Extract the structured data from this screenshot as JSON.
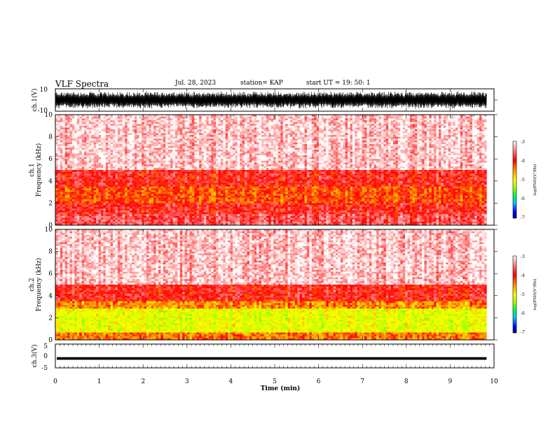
{
  "header": {
    "title": "VLF Spectra",
    "date": "Jul. 28, 2023",
    "station": "station= KAP",
    "start": "start  UT  =   19: 50: 1"
  },
  "colors": {
    "waveform": "#000000",
    "frame": "#000000",
    "colormap": [
      "#00007a",
      "#0000ff",
      "#00c8ff",
      "#00ff40",
      "#b4ff00",
      "#ffff00",
      "#ff9900",
      "#ff0000",
      "#ff8080",
      "#ffffff"
    ]
  },
  "colorbar_labels": {
    "label": "log(PSD)(V²/Hz)",
    "ticks": [
      "-3",
      "-4",
      "-5",
      "-6",
      "-7"
    ]
  },
  "chart_data": [
    {
      "type": "line",
      "panel": "ch1_waveform",
      "ylabel": "ch.1(V)",
      "ylim": [
        -10,
        10
      ],
      "yticks": [
        "10",
        "-10"
      ],
      "description_series": "dense oscillating waveform filling roughly -8 to 8 V",
      "xlim": [
        0,
        10
      ]
    },
    {
      "type": "heatmap",
      "panel": "ch1_spectrogram",
      "ylabel": "ch.1\nFrequency  (kHz)",
      "ylim": [
        0,
        10
      ],
      "yticks": [
        "0",
        "2",
        "4",
        "6",
        "8",
        "10"
      ],
      "xlim": [
        0,
        9.83
      ],
      "color_scale": [
        -7,
        -3
      ],
      "frequency_bands_kHz": [
        {
          "from": 0,
          "to": 1,
          "log_psd": -3.6
        },
        {
          "from": 1,
          "to": 2,
          "log_psd": -3.8
        },
        {
          "from": 2,
          "to": 3.5,
          "log_psd": -4.1
        },
        {
          "from": 3.5,
          "to": 5,
          "log_psd": -3.8
        },
        {
          "from": 5,
          "to": 10,
          "log_psd": -3.2
        }
      ]
    },
    {
      "type": "heatmap",
      "panel": "ch2_spectrogram",
      "ylabel": "ch.2\nFrequency  (kHz)",
      "ylim": [
        0,
        10
      ],
      "yticks": [
        "0",
        "2",
        "4",
        "6",
        "8",
        "10"
      ],
      "xlim": [
        0,
        9.83
      ],
      "color_scale": [
        -7,
        -3
      ],
      "frequency_bands_kHz": [
        {
          "from": 0,
          "to": 0.7,
          "log_psd": -4.2
        },
        {
          "from": 0.7,
          "to": 2.8,
          "log_psd": -4.9
        },
        {
          "from": 2.8,
          "to": 3.5,
          "log_psd": -4.3
        },
        {
          "from": 3.5,
          "to": 5,
          "log_psd": -3.8
        },
        {
          "from": 5,
          "to": 10,
          "log_psd": -3.2
        }
      ]
    },
    {
      "type": "line",
      "panel": "ch3_waveform",
      "ylabel": "ch.3(V)",
      "ylim": [
        -5,
        5
      ],
      "yticks": [
        "5",
        "0",
        "-5"
      ],
      "xlabel": "Time  (min)",
      "xlim": [
        0,
        10
      ],
      "xticks": [
        "0",
        "1",
        "2",
        "3",
        "4",
        "5",
        "6",
        "7",
        "8",
        "9",
        "10"
      ],
      "description_series": "narrow band around -1 V"
    }
  ]
}
